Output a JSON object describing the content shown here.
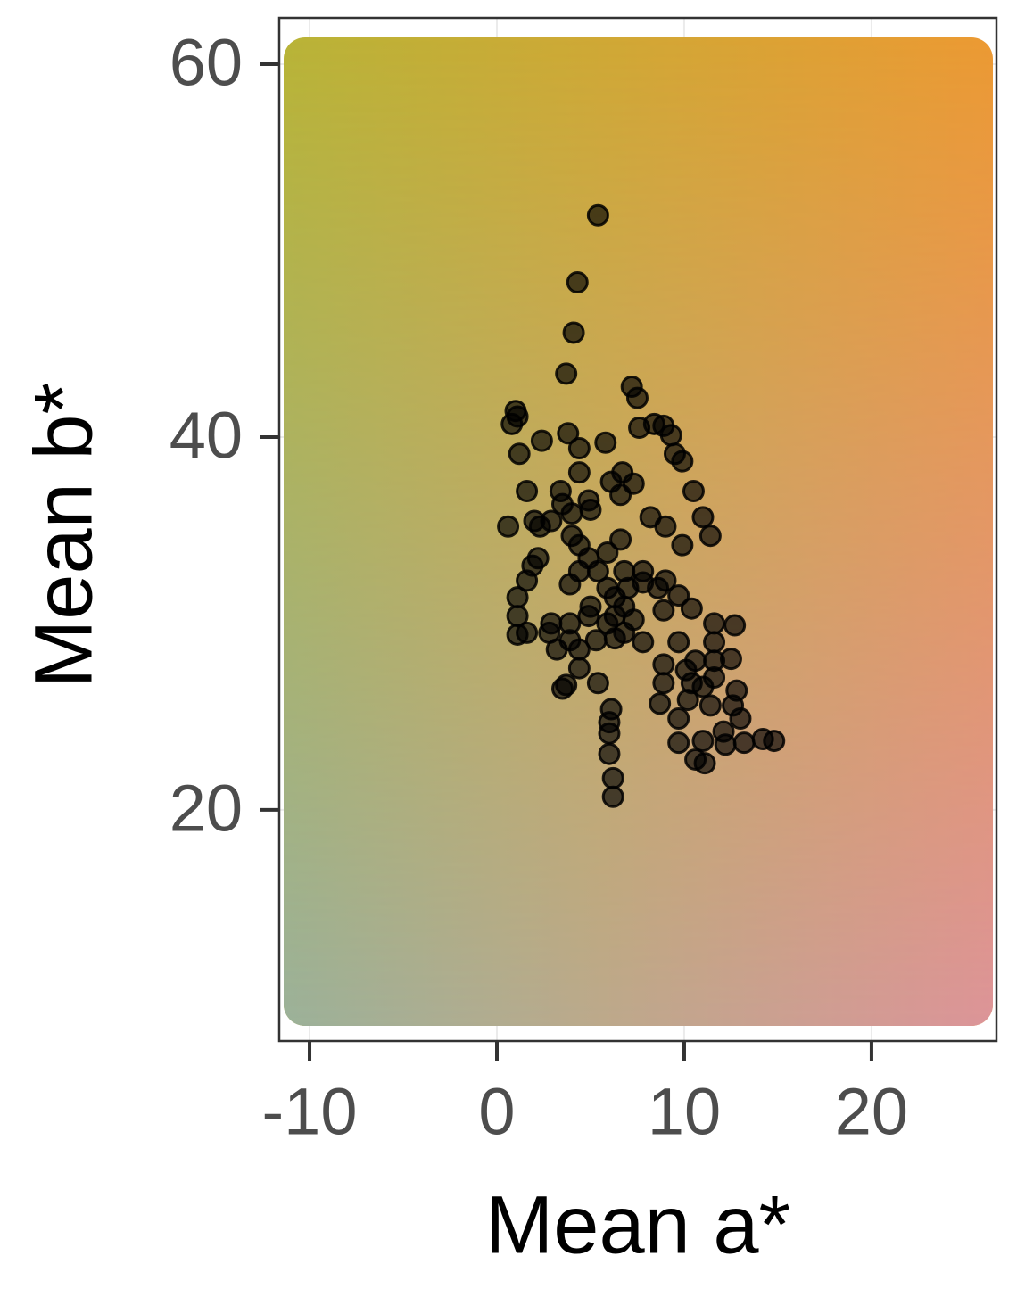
{
  "chart_data": {
    "type": "scatter",
    "x_label": "Mean a*",
    "y_label": "Mean b*",
    "x": [
      5.4,
      4.3,
      4.1,
      3.7,
      7.2,
      7.5,
      1.0,
      1.1,
      0.8,
      7.6,
      8.4,
      8.9,
      9.3,
      3.8,
      2.4,
      1.2,
      4.4,
      5.8,
      9.5,
      9.9,
      1.6,
      3.4,
      6.7,
      7.3,
      10.5,
      6.6,
      2.0,
      0.6,
      2.3,
      2.9,
      4.0,
      5.0,
      11.0,
      8.2,
      9.0,
      4.0,
      11.4,
      9.9,
      4.4,
      6.6,
      2.2,
      1.9,
      1.6,
      4.9,
      5.4,
      6.8,
      7.8,
      9.0,
      1.1,
      3.9,
      5.9,
      9.7,
      1.1,
      2.9,
      4.9,
      6.8,
      8.9,
      10.4,
      1.6,
      2.8,
      3.9,
      5.9,
      7.3,
      11.6,
      12.7,
      1.1,
      3.2,
      4.4,
      6.3,
      7.8,
      9.7,
      11.6,
      4.4,
      8.9,
      10.6,
      12.5,
      3.7,
      3.5,
      5.4,
      8.9,
      10.4,
      11.6,
      12.8,
      8.7,
      10.2,
      11.4,
      12.6,
      6.1,
      6.0,
      9.7,
      13.0,
      6.0,
      12.1,
      9.7,
      11.0,
      13.2,
      14.2,
      14.8,
      12.2,
      6.0,
      10.6,
      11.1,
      6.2,
      6.2,
      5.0,
      6.3,
      7.0,
      8.6,
      6.3,
      6.8,
      3.9,
      5.3,
      11.0,
      10.1,
      11.6,
      4.4,
      5.9,
      4.9,
      6.1,
      4.4,
      3.5,
      7.8
    ],
    "y": [
      51.9,
      48.3,
      45.6,
      43.4,
      42.7,
      42.1,
      41.4,
      41.1,
      40.7,
      40.5,
      40.7,
      40.6,
      40.1,
      40.2,
      39.8,
      39.1,
      39.4,
      39.7,
      39.1,
      38.7,
      37.1,
      37.1,
      38.1,
      37.5,
      37.1,
      36.9,
      35.5,
      35.2,
      35.2,
      35.5,
      35.9,
      36.1,
      35.7,
      35.7,
      35.2,
      34.7,
      34.7,
      34.2,
      34.2,
      34.5,
      33.5,
      33.1,
      32.3,
      33.5,
      32.8,
      32.8,
      32.8,
      32.3,
      31.4,
      32.1,
      31.9,
      31.5,
      30.4,
      30.0,
      30.4,
      30.9,
      30.7,
      30.8,
      29.5,
      29.5,
      30.0,
      30.0,
      30.2,
      30.0,
      29.9,
      29.4,
      28.6,
      28.6,
      29.2,
      29.0,
      29.0,
      29.0,
      27.6,
      27.8,
      28.0,
      28.1,
      26.7,
      26.5,
      26.8,
      26.8,
      26.8,
      27.1,
      26.4,
      25.7,
      25.9,
      25.6,
      25.6,
      25.4,
      24.7,
      24.9,
      24.9,
      24.1,
      24.2,
      23.6,
      23.7,
      23.6,
      23.8,
      23.7,
      23.5,
      23.0,
      22.7,
      22.5,
      21.7,
      20.7,
      30.9,
      31.4,
      31.9,
      31.9,
      30.4,
      29.5,
      29.1,
      29.1,
      26.6,
      27.5,
      28.0,
      32.8,
      33.8,
      36.6,
      37.6,
      38.1,
      36.4,
      32.2
    ],
    "color": "#000000",
    "xlim": [
      -11.62,
      26.67
    ],
    "xticks": [
      -10,
      0,
      10,
      20
    ],
    "ylim": [
      7.6,
      62.49
    ],
    "yticks": [
      20,
      40,
      60
    ],
    "grid": true
  }
}
